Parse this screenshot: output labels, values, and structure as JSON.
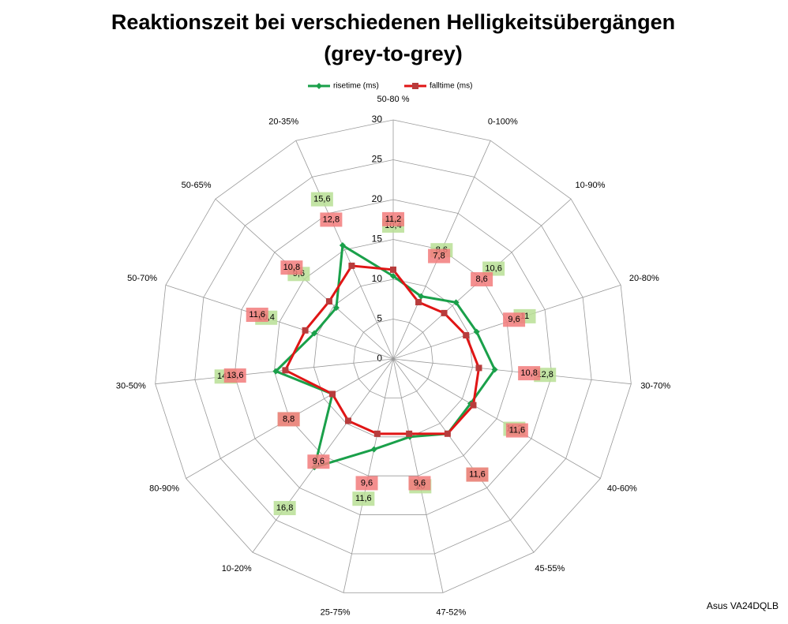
{
  "chart_data": {
    "type": "radar",
    "title": "Reaktionszeit bei verschiedenen Helligkeitsübergängen",
    "subtitle": "(grey-to-grey)",
    "categories": [
      "50-80 %",
      "0-100%",
      "10-90%",
      "20-80%",
      "30-70%",
      "40-60%",
      "45-55%",
      "47-52%",
      "25-75%",
      "10-20%",
      "80-90%",
      "30-50%",
      "50-70%",
      "50-65%",
      "20-35%"
    ],
    "series": [
      {
        "name": "risetime (ms)",
        "color": "#1aa04a",
        "label_color": "#b9df95",
        "values": [
          10.4,
          8.6,
          10.6,
          11,
          12.8,
          11.2,
          11.6,
          10,
          11.6,
          16.8,
          8.8,
          14.8,
          10.4,
          9.6,
          15.6
        ],
        "value_labels": [
          "10,4",
          "8,6",
          "10,6",
          "11",
          "12,8",
          "11,2",
          "11,6",
          "10",
          "11,6",
          "16,8",
          "8,8",
          "14,8",
          "10,4",
          "9,6",
          "15,6"
        ]
      },
      {
        "name": "falltime (ms)",
        "color": "#e01515",
        "label_color": "#f27b7b",
        "values": [
          11.2,
          7.8,
          8.6,
          9.6,
          10.8,
          11.6,
          11.6,
          9.6,
          9.6,
          9.6,
          8.8,
          13.6,
          11.6,
          10.8,
          12.8
        ],
        "value_labels": [
          "11,2",
          "7,8",
          "8,6",
          "9,6",
          "10,8",
          "11,6",
          "11,6",
          "9,6",
          "9,6",
          "9,6",
          "8,8",
          "13,6",
          "11,6",
          "10,8",
          "12,8"
        ]
      }
    ],
    "rlim": [
      0,
      30
    ],
    "rticks": [
      0,
      5,
      10,
      15,
      20,
      25,
      30
    ],
    "grid": true,
    "legend": "top",
    "footnote": "Asus VA24DQLB"
  }
}
